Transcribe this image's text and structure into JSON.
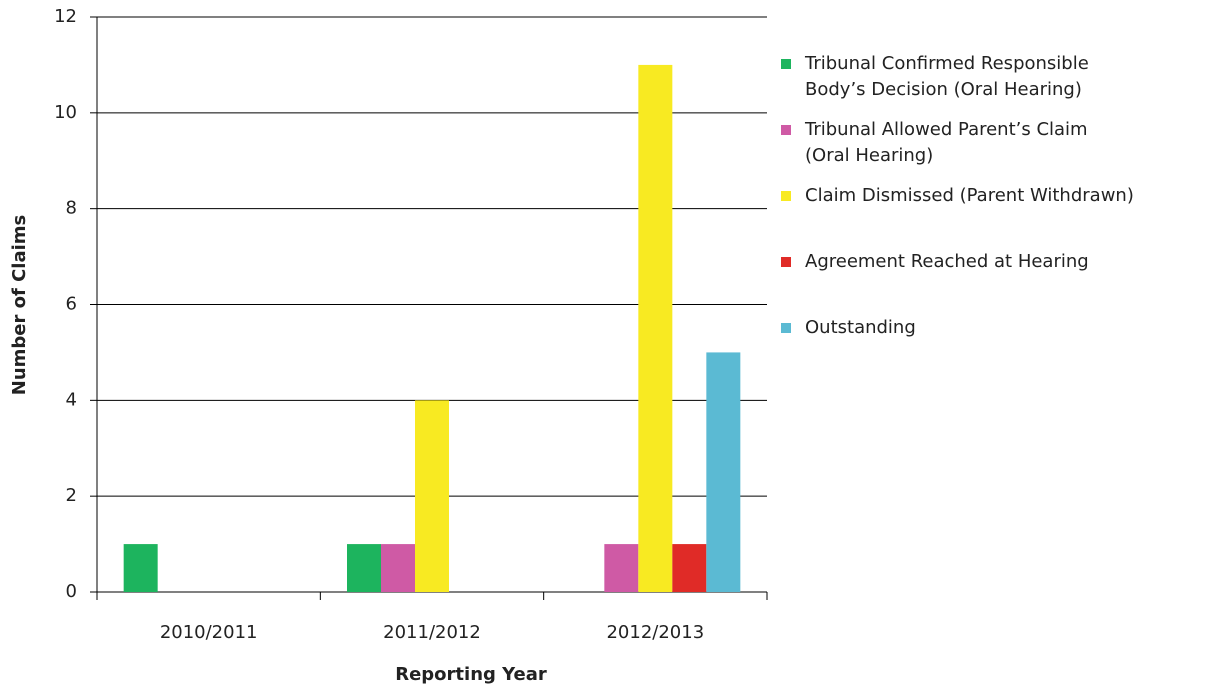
{
  "chart_data": {
    "type": "bar",
    "xlabel": "Reporting Year",
    "ylabel": "Number of Claims",
    "categories": [
      "2010/2011",
      "2011/2012",
      "2012/2013"
    ],
    "series": [
      {
        "name": "Tribunal Confirmed Responsible Body’s Decision (Oral Hearing)",
        "color": "#1db45e",
        "values": [
          1,
          1,
          0
        ]
      },
      {
        "name": "Tribunal Allowed Parent’s Claim (Oral Hearing)",
        "color": "#cf5aa5",
        "values": [
          0,
          1,
          1
        ]
      },
      {
        "name": "Claim Dismissed (Parent Withdrawn)",
        "color": "#f8ea22",
        "values": [
          0,
          4,
          11
        ]
      },
      {
        "name": "Agreement Reached at Hearing",
        "color": "#e02b27",
        "values": [
          0,
          0,
          1
        ]
      },
      {
        "name": "Outstanding",
        "color": "#5bbad3",
        "values": [
          0,
          0,
          5
        ]
      }
    ],
    "ylim": [
      0,
      12
    ],
    "yticks": [
      0,
      2,
      4,
      6,
      8,
      10,
      12
    ],
    "grid": true,
    "legend": "right"
  }
}
